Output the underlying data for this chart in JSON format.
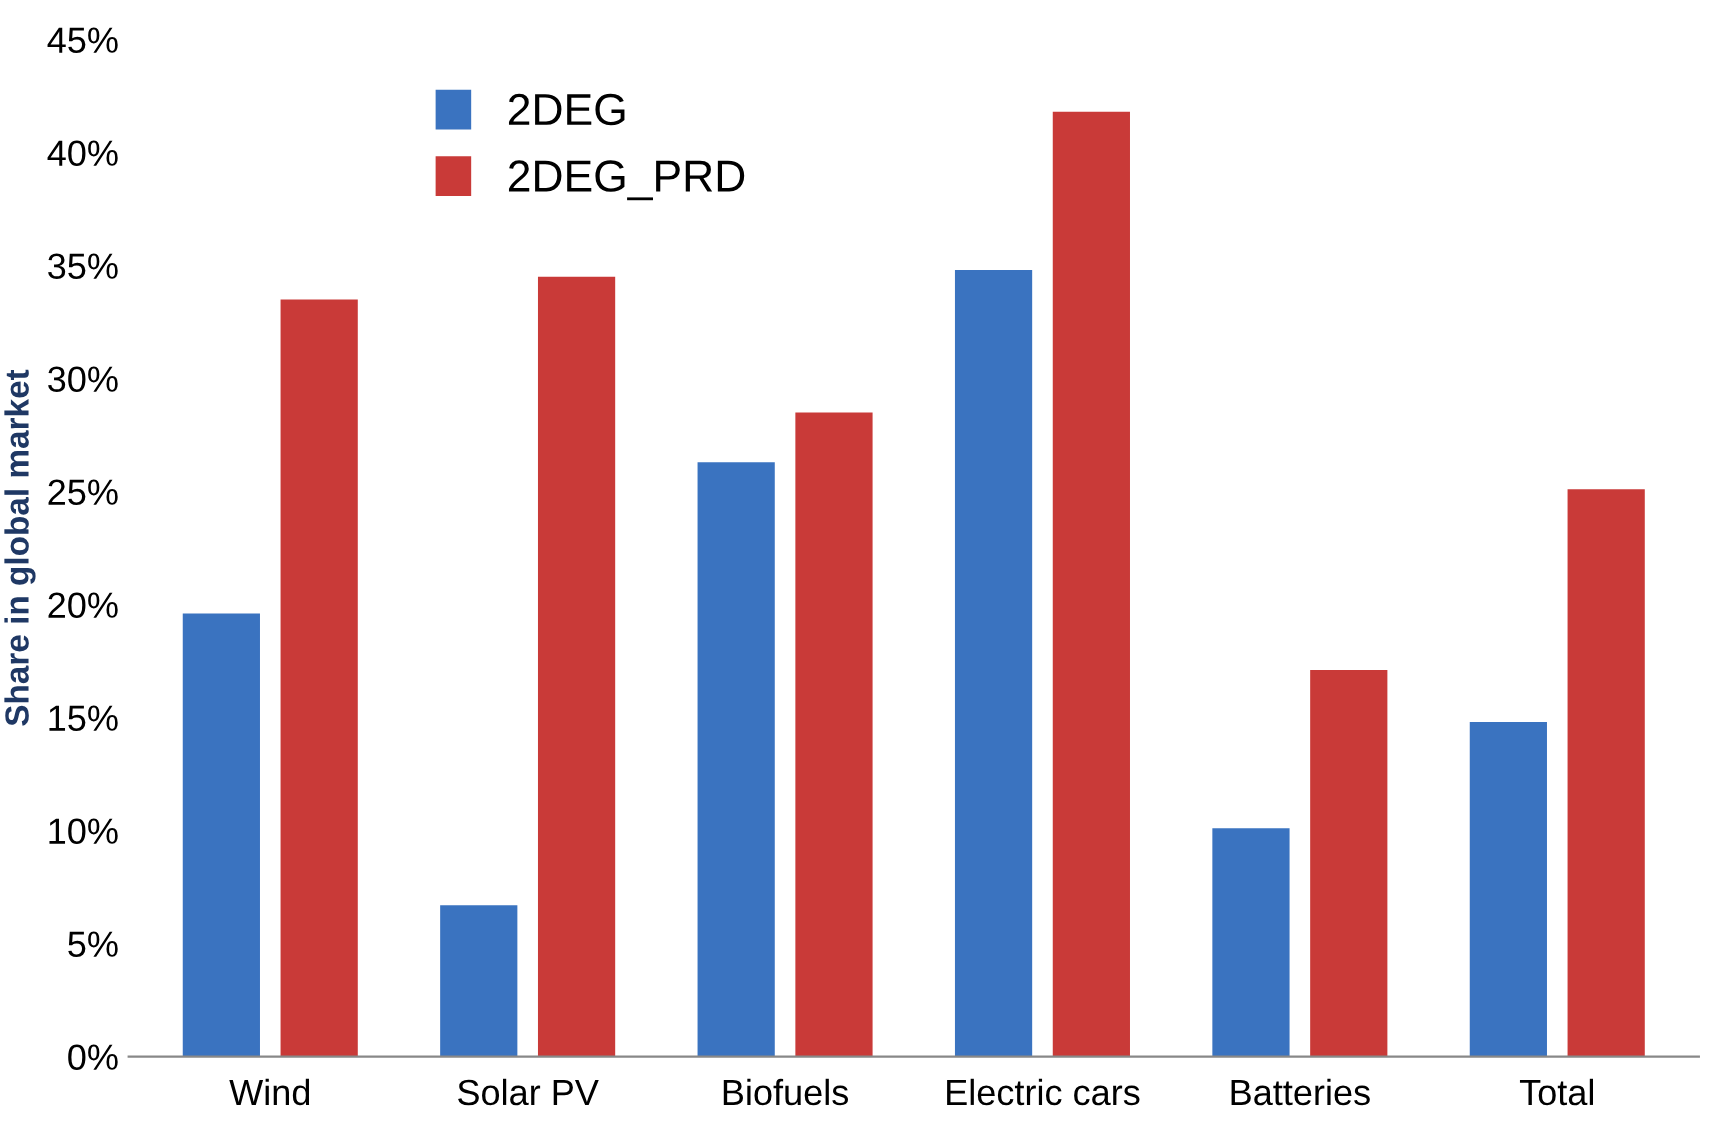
{
  "chart_data": {
    "type": "bar",
    "ylabel": "Share in global market",
    "categories": [
      "Wind",
      "Solar PV",
      "Biofuels",
      "Electric cars",
      "Batteries",
      "Total"
    ],
    "series": [
      {
        "name": "2DEG",
        "color": "#3a73c0",
        "values": [
          19.6,
          6.7,
          26.3,
          34.8,
          10.1,
          14.8
        ]
      },
      {
        "name": "2DEG_PRD",
        "color": "#c93a38",
        "values": [
          33.5,
          34.5,
          28.5,
          41.8,
          17.1,
          25.1
        ]
      }
    ],
    "ylim": [
      0,
      45
    ],
    "yticks": [
      {
        "value": 0,
        "label": "0%"
      },
      {
        "value": 5,
        "label": "5%"
      },
      {
        "value": 10,
        "label": "10%"
      },
      {
        "value": 15,
        "label": "15%"
      },
      {
        "value": 20,
        "label": "20%"
      },
      {
        "value": 25,
        "label": "25%"
      },
      {
        "value": 30,
        "label": "30%"
      },
      {
        "value": 35,
        "label": "35%"
      },
      {
        "value": 40,
        "label": "40%"
      },
      {
        "value": 45,
        "label": "45%"
      }
    ],
    "grid": false,
    "legend": "top left"
  }
}
